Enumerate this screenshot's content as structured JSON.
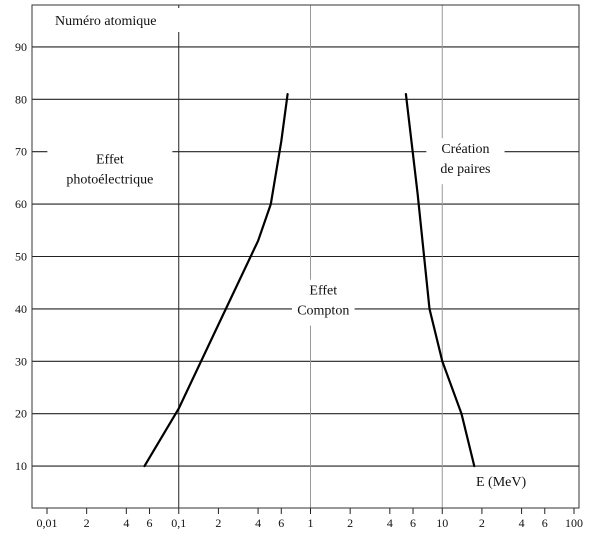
{
  "chart_data": {
    "type": "line",
    "ylabel": "Numéro atomique",
    "xlabel": "E (MeV)",
    "xscale": "log",
    "xlim": [
      0.01,
      100
    ],
    "ylim": [
      2,
      98
    ],
    "grid": "horizontal lines at labelled Z; vertical lines at 0.1, 1, 10",
    "yticks": [
      10,
      20,
      30,
      40,
      50,
      60,
      70,
      80,
      90
    ],
    "ytick_labels": [
      "10",
      "20",
      "30",
      "40",
      "50",
      "60",
      "70",
      "80",
      "90"
    ],
    "xticks": [
      0.01,
      0.02,
      0.04,
      0.06,
      0.1,
      0.2,
      0.4,
      0.6,
      1,
      2,
      4,
      6,
      10,
      20,
      40,
      60,
      100
    ],
    "xtick_labels": [
      "0,01",
      "2",
      "4",
      "6",
      "0,1",
      "2",
      "4",
      "6",
      "1",
      "2",
      "4",
      "6",
      "10",
      "2",
      "4",
      "6",
      "100"
    ],
    "vlines": [
      0.1,
      1,
      10
    ],
    "series": [
      {
        "x": [
          0.055,
          0.1,
          0.2,
          0.4,
          0.5,
          0.6,
          0.67
        ],
        "y": [
          10,
          21,
          37,
          53,
          60,
          72,
          81
        ],
        "color": "#000000"
      },
      {
        "x": [
          5.3,
          6.5,
          8,
          10,
          14,
          17.5
        ],
        "y": [
          81,
          62,
          40,
          30,
          20,
          10
        ],
        "color": "#000000"
      }
    ],
    "regions": [
      {
        "lines": [
          "Effet",
          "photoélectrique"
        ],
        "x": 0.03,
        "y": 66
      },
      {
        "lines": [
          "Effet",
          "Compton"
        ],
        "x": 1.25,
        "y": 41
      },
      {
        "lines": [
          "Création",
          "de paires"
        ],
        "x": 15,
        "y": 68
      }
    ]
  }
}
